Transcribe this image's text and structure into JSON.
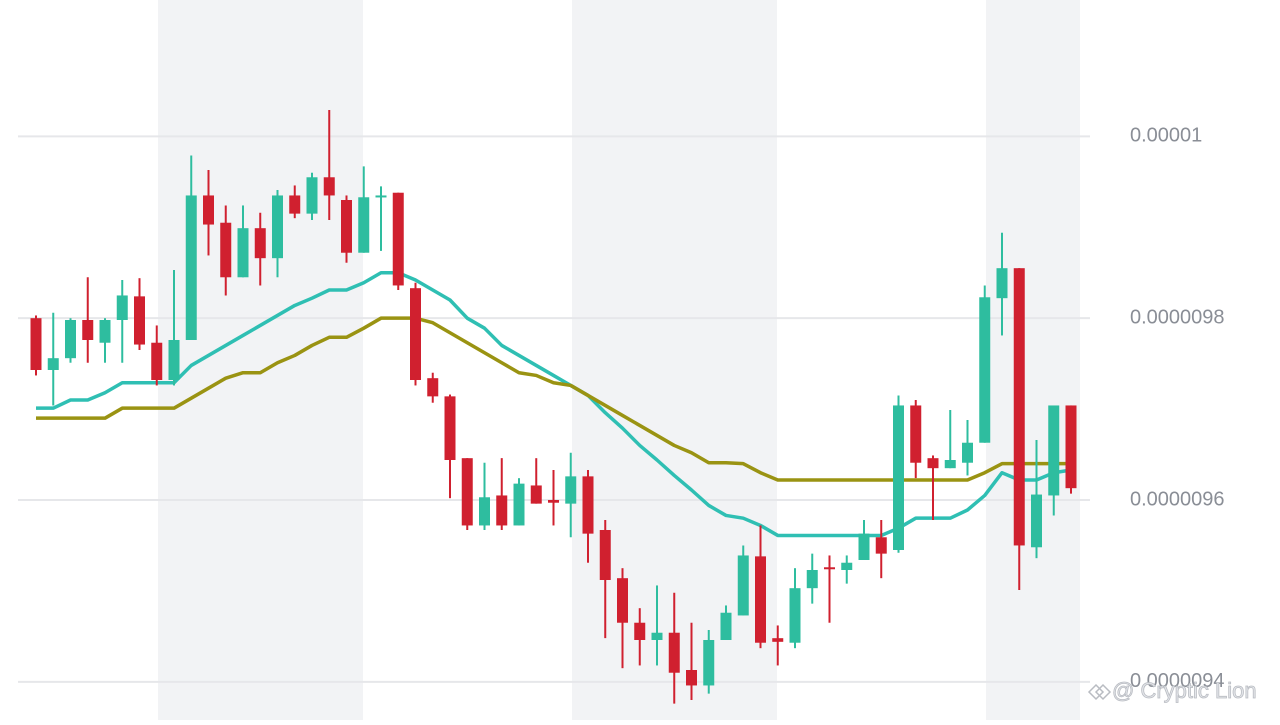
{
  "chart_data": {
    "type": "candlestick",
    "open": [
      9.8e-06,
      9.743e-06,
      9.756e-06,
      9.798e-06,
      9.773e-06,
      9.798e-06,
      9.824e-06,
      9.773e-06,
      9.732e-06,
      9.776e-06,
      9.935e-06,
      9.905e-06,
      9.845e-06,
      9.899e-06,
      9.866e-06,
      9.935e-06,
      9.915e-06,
      9.955e-06,
      9.93e-06,
      9.872e-06,
      9.933e-06,
      9.938e-06,
      9.833e-06,
      9.734e-06,
      9.714e-06,
      9.646e-06,
      9.572e-06,
      9.605e-06,
      9.572e-06,
      9.616e-06,
      9.6e-06,
      9.596e-06,
      9.626e-06,
      9.567e-06,
      9.514e-06,
      9.465e-06,
      9.446e-06,
      9.454e-06,
      9.413e-06,
      9.396e-06,
      9.446e-06,
      9.473e-06,
      9.538e-06,
      9.448e-06,
      9.443e-06,
      9.503e-06,
      9.526e-06,
      9.523e-06,
      9.534e-06,
      9.559e-06,
      9.545e-06,
      9.704e-06,
      9.646e-06,
      9.635e-06,
      9.641e-06,
      9.663e-06,
      9.822e-06,
      9.855e-06,
      9.548e-06,
      9.605e-06,
      9.704e-06
    ],
    "high": [
      9.803e-06,
      9.806e-06,
      9.8e-06,
      9.845e-06,
      9.8e-06,
      9.842e-06,
      9.844e-06,
      9.792e-06,
      9.853e-06,
      9.979e-06,
      9.963e-06,
      9.924e-06,
      9.924e-06,
      9.916e-06,
      9.941e-06,
      9.946e-06,
      9.96e-06,
      1.0029e-05,
      9.935e-06,
      9.967e-06,
      9.945e-06,
      9.938e-06,
      9.839e-06,
      9.74e-06,
      9.716e-06,
      9.646e-06,
      9.641e-06,
      9.646e-06,
      9.624e-06,
      9.646e-06,
      9.633e-06,
      9.652e-06,
      9.633e-06,
      9.578e-06,
      9.525e-06,
      9.481e-06,
      9.506e-06,
      9.498e-06,
      9.465e-06,
      9.457e-06,
      9.484e-06,
      9.55e-06,
      9.572e-06,
      9.462e-06,
      9.525e-06,
      9.541e-06,
      9.539e-06,
      9.539e-06,
      9.578e-06,
      9.578e-06,
      9.715e-06,
      9.71e-06,
      9.649e-06,
      9.699e-06,
      9.688e-06,
      9.836e-06,
      9.894e-06,
      9.855e-06,
      9.666e-06,
      9.704e-06,
      9.704e-06
    ],
    "low": [
      9.737e-06,
      9.704e-06,
      9.751e-06,
      9.751e-06,
      9.751e-06,
      9.751e-06,
      9.765e-06,
      9.726e-06,
      9.726e-06,
      9.776e-06,
      9.869e-06,
      9.825e-06,
      9.845e-06,
      9.836e-06,
      9.845e-06,
      9.91e-06,
      9.908e-06,
      9.908e-06,
      9.861e-06,
      9.872e-06,
      9.874e-06,
      9.831e-06,
      9.726e-06,
      9.707e-06,
      9.602e-06,
      9.567e-06,
      9.567e-06,
      9.567e-06,
      9.572e-06,
      9.596e-06,
      9.572e-06,
      9.559e-06,
      9.531e-06,
      9.448e-06,
      9.415e-06,
      9.418e-06,
      9.418e-06,
      9.376e-06,
      9.38e-06,
      9.387e-06,
      9.446e-06,
      9.473e-06,
      9.437e-06,
      9.418e-06,
      9.437e-06,
      9.486e-06,
      9.465e-06,
      9.508e-06,
      9.534e-06,
      9.514e-06,
      9.542e-06,
      9.624e-06,
      9.578e-06,
      9.635e-06,
      9.627e-06,
      9.663e-06,
      9.781e-06,
      9.501e-06,
      9.536e-06,
      9.583e-06,
      9.607e-06
    ],
    "close": [
      9.743e-06,
      9.756e-06,
      9.798e-06,
      9.776e-06,
      9.798e-06,
      9.825e-06,
      9.771e-06,
      9.732e-06,
      9.776e-06,
      9.935e-06,
      9.903e-06,
      9.845e-06,
      9.899e-06,
      9.866e-06,
      9.935e-06,
      9.915e-06,
      9.955e-06,
      9.935e-06,
      9.872e-06,
      9.933e-06,
      9.935e-06,
      9.836e-06,
      9.732e-06,
      9.714e-06,
      9.644e-06,
      9.572e-06,
      9.603e-06,
      9.572e-06,
      9.618e-06,
      9.596e-06,
      9.597e-06,
      9.626e-06,
      9.563e-06,
      9.512e-06,
      9.465e-06,
      9.446e-06,
      9.454e-06,
      9.41e-06,
      9.396e-06,
      9.446e-06,
      9.476e-06,
      9.539e-06,
      9.443e-06,
      9.444e-06,
      9.503e-06,
      9.523e-06,
      9.525e-06,
      9.531e-06,
      9.563e-06,
      9.541e-06,
      9.704e-06,
      9.641e-06,
      9.635e-06,
      9.644e-06,
      9.663e-06,
      9.823e-06,
      9.855e-06,
      9.55e-06,
      9.606e-06,
      9.704e-06,
      9.613e-06
    ],
    "up_color": "#2ebd9f",
    "down_color": "#d0202f",
    "moving_averages": [
      {
        "color": "#2fbfb3",
        "values": [
          9.701e-06,
          9.701e-06,
          9.71e-06,
          9.71e-06,
          9.718e-06,
          9.729e-06,
          9.729e-06,
          9.729e-06,
          9.729e-06,
          9.748e-06,
          9.759e-06,
          9.77e-06,
          9.781e-06,
          9.792e-06,
          9.803e-06,
          9.814e-06,
          9.822e-06,
          9.831e-06,
          9.831e-06,
          9.839e-06,
          9.85e-06,
          9.85e-06,
          9.842e-06,
          9.831e-06,
          9.82e-06,
          9.8e-06,
          9.789e-06,
          9.77e-06,
          9.759e-06,
          9.748e-06,
          9.737e-06,
          9.726e-06,
          9.715e-06,
          9.696e-06,
          9.679e-06,
          9.66e-06,
          9.644e-06,
          9.627e-06,
          9.611e-06,
          9.594e-06,
          9.583e-06,
          9.58e-06,
          9.572e-06,
          9.561e-06,
          9.561e-06,
          9.561e-06,
          9.561e-06,
          9.561e-06,
          9.561e-06,
          9.561e-06,
          9.569e-06,
          9.58e-06,
          9.58e-06,
          9.58e-06,
          9.589e-06,
          9.605e-06,
          9.63e-06,
          9.622e-06,
          9.622e-06,
          9.63e-06,
          9.633e-06
        ]
      },
      {
        "color": "#9a9312",
        "values": [
          9.69e-06,
          9.69e-06,
          9.69e-06,
          9.69e-06,
          9.69e-06,
          9.701e-06,
          9.701e-06,
          9.701e-06,
          9.701e-06,
          9.712e-06,
          9.723e-06,
          9.734e-06,
          9.74e-06,
          9.74e-06,
          9.751e-06,
          9.759e-06,
          9.77e-06,
          9.779e-06,
          9.779e-06,
          9.789e-06,
          9.8e-06,
          9.8e-06,
          9.8e-06,
          9.795e-06,
          9.784e-06,
          9.773e-06,
          9.762e-06,
          9.751e-06,
          9.74e-06,
          9.737e-06,
          9.729e-06,
          9.726e-06,
          9.715e-06,
          9.704e-06,
          9.693e-06,
          9.682e-06,
          9.671e-06,
          9.66e-06,
          9.652e-06,
          9.641e-06,
          9.641e-06,
          9.64e-06,
          9.63e-06,
          9.622e-06,
          9.622e-06,
          9.622e-06,
          9.622e-06,
          9.622e-06,
          9.622e-06,
          9.622e-06,
          9.622e-06,
          9.622e-06,
          9.622e-06,
          9.622e-06,
          9.622e-06,
          9.63e-06,
          9.64e-06,
          9.64e-06,
          9.64e-06,
          9.64e-06,
          9.64e-06
        ]
      }
    ],
    "ylim": [
      9.358e-06,
      1.015e-05
    ],
    "yticks": [
      1e-05,
      9.8e-06,
      9.6e-06,
      9.4e-06
    ],
    "grid": true,
    "watermark": "@ Cryptic Lion"
  }
}
